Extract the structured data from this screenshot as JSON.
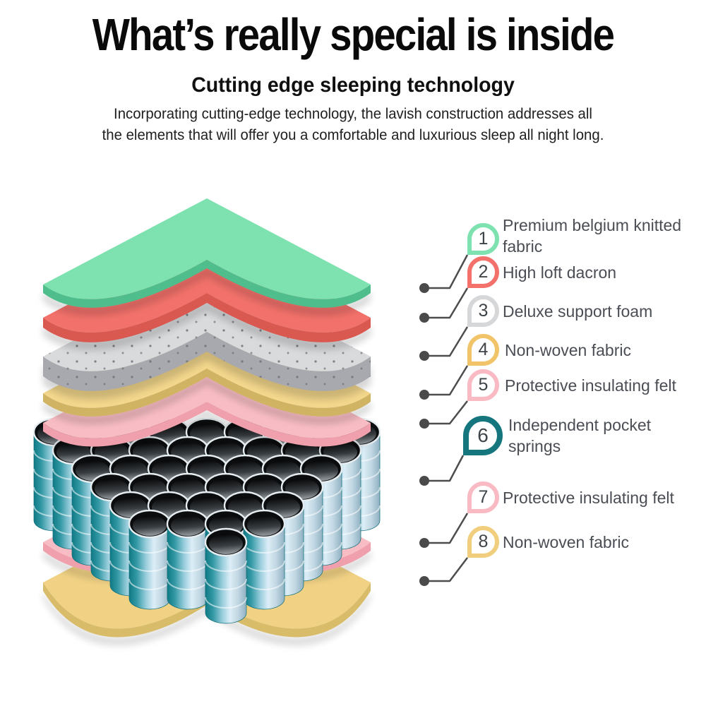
{
  "header": {
    "title": "What’s really special is inside",
    "subtitle": "Cutting edge sleeping technology",
    "description_line1": "Incorporating cutting-edge technology, the lavish construction addresses all",
    "description_line2": "the elements that will offer you a comfortable and luxurious sleep all night long."
  },
  "callouts": [
    {
      "number": "1",
      "label": "Premium belgium knitted fabric",
      "color": "#7DE2AF"
    },
    {
      "number": "2",
      "label": "High loft dacron",
      "color": "#F4716B"
    },
    {
      "number": "3",
      "label": "Deluxe support foam",
      "color": "#D6D7D9"
    },
    {
      "number": "4",
      "label": "Non-woven fabric",
      "color": "#F2C469"
    },
    {
      "number": "5",
      "label": "Protective insulating felt",
      "color": "#F9BAC3"
    },
    {
      "number": "6",
      "label": "Independent pocket springs",
      "color": "#15767E"
    },
    {
      "number": "7",
      "label": "Protective insulating felt",
      "color": "#F9BAC3"
    },
    {
      "number": "8",
      "label": "Non-woven fabric",
      "color": "#F0CE7D"
    }
  ],
  "diagram": {
    "layers": [
      {
        "name": "premium-belgium-knitted-fabric",
        "top_color": "#7DE2AF",
        "edge_color": "#4FBE8C"
      },
      {
        "name": "high-loft-dacron",
        "top_color": "#F2716B",
        "edge_color": "#D95850"
      },
      {
        "name": "deluxe-support-foam",
        "top_color": "#D9DADC",
        "edge_color": "#A7A9AE"
      },
      {
        "name": "non-woven-fabric-top",
        "top_color": "#F3D78C",
        "edge_color": "#D0B463"
      },
      {
        "name": "protective-insulating-felt-top",
        "top_color": "#F8BDC4",
        "edge_color": "#EFA0AC"
      },
      {
        "name": "protective-insulating-felt-bottom",
        "top_color": "#F8BDC4",
        "edge_color": "#EFA0AC"
      },
      {
        "name": "non-woven-fabric-bottom",
        "top_color": "#F1D285",
        "edge_color": "#D8BC69"
      }
    ],
    "springs": {
      "teal": "#0F7A85",
      "light": "#DCEDF6",
      "hole": "#0B0C0D"
    },
    "leader_line_color": "#4D4D4D"
  }
}
